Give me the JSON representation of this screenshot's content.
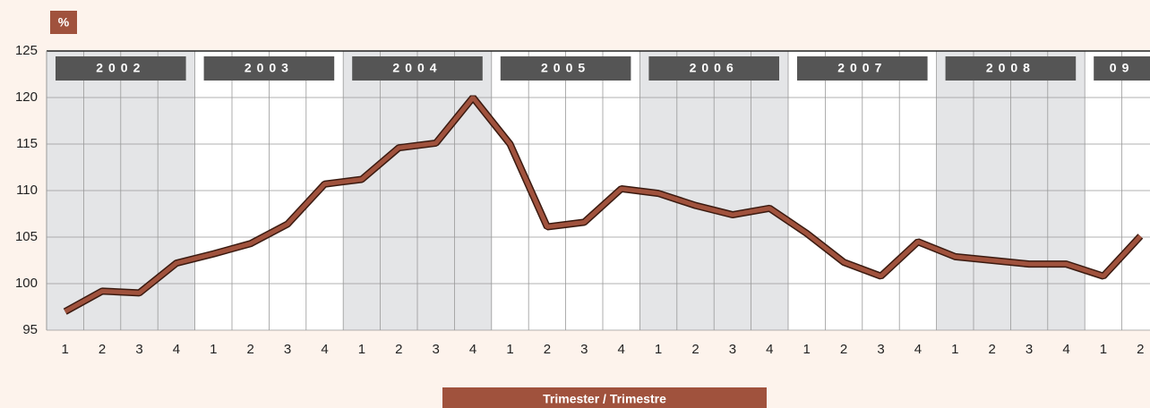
{
  "chart_data": {
    "type": "line",
    "y_label": "%",
    "x_label": "Trimester / Trimestre",
    "groups": [
      "2002",
      "2003",
      "2004",
      "2005",
      "2006",
      "2007",
      "2008",
      "09"
    ],
    "categories": [
      "1",
      "2",
      "3",
      "4",
      "1",
      "2",
      "3",
      "4",
      "1",
      "2",
      "3",
      "4",
      "1",
      "2",
      "3",
      "4",
      "1",
      "2",
      "3",
      "4",
      "1",
      "2",
      "3",
      "4",
      "1",
      "2",
      "3",
      "4",
      "1",
      "2"
    ],
    "series": [
      {
        "color": "#a0523d",
        "values": [
          97,
          99.2,
          99,
          102.2,
          103.2,
          104.3,
          106.4,
          110.7,
          111.2,
          114.6,
          115.1,
          120,
          115,
          106.1,
          106.6,
          110.2,
          109.7,
          108.4,
          107.4,
          108.1,
          105.4,
          102.3,
          100.8,
          104.5,
          102.9,
          102.5,
          102.1,
          102.1,
          100.8,
          105.1
        ]
      }
    ],
    "ylim": [
      95,
      125
    ],
    "yticks": [
      95,
      100,
      105,
      110,
      115,
      120,
      125
    ],
    "grid": true
  }
}
